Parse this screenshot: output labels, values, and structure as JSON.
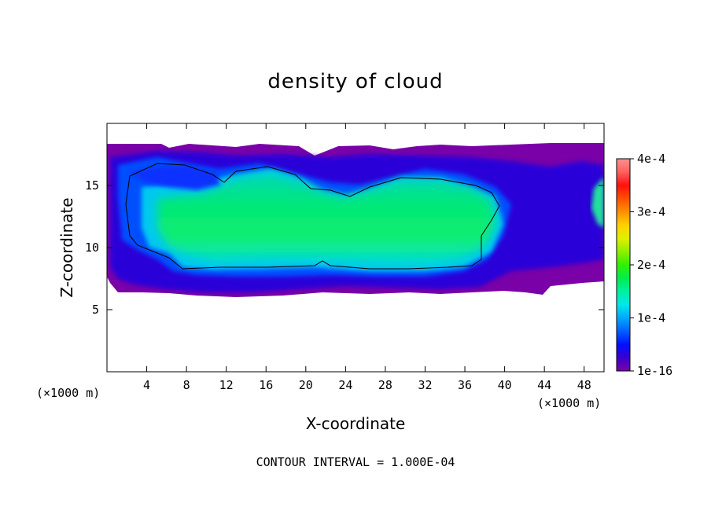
{
  "chart_data": {
    "type": "heatmap",
    "title": "density of cloud",
    "xlabel": "X-coordinate",
    "ylabel": "Z-coordinate",
    "x_unit": "(×1000 m)",
    "y_unit": "(×1000 m)",
    "xlim": [
      0,
      50
    ],
    "ylim": [
      0,
      20
    ],
    "x_ticks": [
      4,
      8,
      12,
      16,
      20,
      24,
      28,
      32,
      36,
      40,
      44,
      48
    ],
    "y_ticks": [
      5,
      10,
      15
    ],
    "footer": "CONTOUR INTERVAL = 1.000E-04",
    "colorbar": {
      "range": [
        1e-16,
        0.0004
      ],
      "tick_labels": [
        "1e-16",
        "1e-4",
        "2e-4",
        "3e-4",
        "4e-4"
      ],
      "colors": [
        "#7a00a8",
        "#3a00d0",
        "#0010ff",
        "#0060ff",
        "#00a8ff",
        "#00e8e8",
        "#00f0a0",
        "#00ee50",
        "#30f000",
        "#90f000",
        "#e0f000",
        "#ffd000",
        "#ff9000",
        "#ff5000",
        "#ff1010",
        "#ff6060",
        "#ff9090"
      ]
    },
    "regions": {
      "outer_low_density_envelope": {
        "x": [
          0,
          50
        ],
        "z": [
          6.0,
          18.3
        ],
        "value": "~1e-5"
      },
      "cloud_core": {
        "x": [
          0,
          38
        ],
        "z": [
          8.1,
          15.8
        ],
        "value": "~1.8e-4"
      },
      "contour_level": 0.0001
    }
  }
}
